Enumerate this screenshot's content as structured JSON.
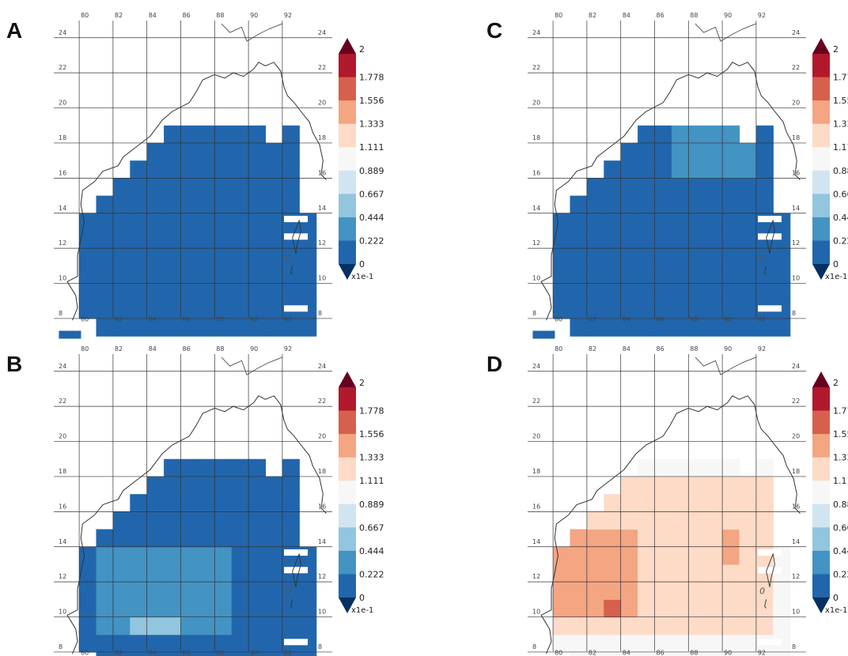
{
  "figure": {
    "panels": [
      {
        "label": "A",
        "pattern": "uniform_low"
      },
      {
        "label": "B",
        "pattern": "south_mid"
      },
      {
        "label": "C",
        "pattern": "north_patch"
      },
      {
        "label": "D",
        "pattern": "high_west"
      }
    ],
    "lon_ticks": [
      "80",
      "82",
      "84",
      "86",
      "88",
      "90",
      "92"
    ],
    "lat_ticks": [
      "24",
      "22",
      "20",
      "18",
      "16",
      "14",
      "12",
      "10",
      "8"
    ],
    "colorbar": {
      "labels": [
        "2",
        "1.778",
        "1.556",
        "1.333",
        "1.111",
        "0.889",
        "0.667",
        "0.444",
        "0.222",
        "0"
      ],
      "unit": "x1e-1",
      "colors": [
        "#b2182b",
        "#d6604d",
        "#f4a582",
        "#fddbc7",
        "#f7f7f7",
        "#d1e5f0",
        "#92c5de",
        "#4393c3",
        "#2166ac"
      ],
      "over_color": "#67001f",
      "under_color": "#053061"
    },
    "marker_text": "0"
  }
}
